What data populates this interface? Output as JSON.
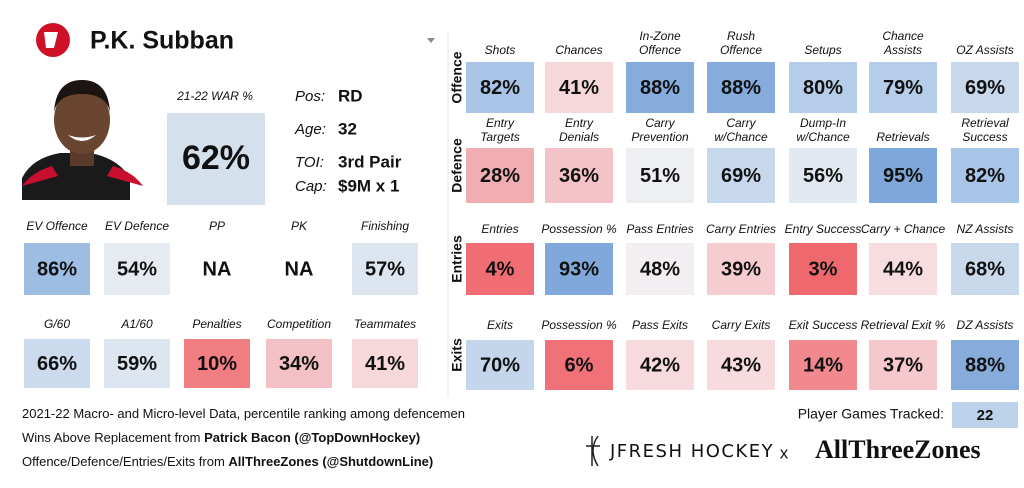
{
  "header": {
    "name": "P.K. Subban"
  },
  "war": {
    "label": "21-22 WAR %",
    "value": "62%",
    "color": "#d5e0ed"
  },
  "bio": [
    {
      "label": "Pos:",
      "value": "RD"
    },
    {
      "label": "Age:",
      "value": "32"
    },
    {
      "label": "TOI:",
      "value": "3rd Pair"
    },
    {
      "label": "Cap:",
      "value": "$9M x 1"
    }
  ],
  "left_rows": [
    [
      {
        "label": "EV Offence",
        "value": "86%",
        "color": "#9dbde3"
      },
      {
        "label": "EV Defence",
        "value": "54%",
        "color": "#e6ebf2"
      },
      {
        "label": "PP",
        "value": "NA"
      },
      {
        "label": "PK",
        "value": "NA"
      },
      {
        "label": "Finishing",
        "value": "57%",
        "color": "#dde5f0"
      }
    ],
    [
      {
        "label": "G/60",
        "value": "66%",
        "color": "#cbdaec"
      },
      {
        "label": "A1/60",
        "value": "59%",
        "color": "#dde5f0"
      },
      {
        "label": "Penalties",
        "value": "10%",
        "color": "#f07e83"
      },
      {
        "label": "Competition",
        "value": "34%",
        "color": "#f3c1c5"
      },
      {
        "label": "Teammates",
        "value": "41%",
        "color": "#f6d8db",
        "bold": false
      }
    ]
  ],
  "groups": [
    {
      "name": "Offence",
      "cells": [
        {
          "label": [
            "Shots"
          ],
          "value": "82%",
          "color": "#a8c4e6"
        },
        {
          "label": [
            "Chances"
          ],
          "value": "41%",
          "color": "#f6d8db"
        },
        {
          "label": [
            "In-Zone",
            "Offence"
          ],
          "value": "88%",
          "color": "#86acdc"
        },
        {
          "label": [
            "Rush",
            "Offence"
          ],
          "value": "88%",
          "color": "#86acdc"
        },
        {
          "label": [
            "Setups"
          ],
          "value": "80%",
          "color": "#b5cde9"
        },
        {
          "label": [
            "Chance",
            "Assists"
          ],
          "value": "79%",
          "color": "#b5cde9"
        },
        {
          "label": [
            "OZ Assists"
          ],
          "value": "69%",
          "color": "#c7d8ec"
        }
      ]
    },
    {
      "name": "Defence",
      "cells": [
        {
          "label": [
            "Entry",
            "Targets"
          ],
          "value": "28%",
          "color": "#f1aeb2"
        },
        {
          "label": [
            "Entry",
            "Denials"
          ],
          "value": "36%",
          "color": "#f3c3c7"
        },
        {
          "label": [
            "Carry",
            "Prevention"
          ],
          "value": "51%",
          "color": "#eeeff3"
        },
        {
          "label": [
            "Carry",
            "w/Chance"
          ],
          "value": "69%",
          "color": "#c7d8ec"
        },
        {
          "label": [
            "Dump-In",
            "w/Chance"
          ],
          "value": "56%",
          "color": "#e2e8f1"
        },
        {
          "label": [
            "Retrievals"
          ],
          "value": "95%",
          "color": "#7ea7da"
        },
        {
          "label": [
            "Retrieval",
            "Success"
          ],
          "value": "82%",
          "color": "#a8c4e6"
        }
      ]
    },
    {
      "name": "Entries",
      "cells": [
        {
          "label": [
            "Entries"
          ],
          "value": "4%",
          "color": "#f06d73"
        },
        {
          "label": [
            "Possession %"
          ],
          "value": "93%",
          "color": "#80a8da"
        },
        {
          "label": [
            "Pass Entries"
          ],
          "value": "48%",
          "color": "#f3eef1"
        },
        {
          "label": [
            "Carry Entries"
          ],
          "value": "39%",
          "color": "#f5cdd1"
        },
        {
          "label": [
            "Entry Success"
          ],
          "value": "3%",
          "color": "#ef686e"
        },
        {
          "label": [
            "Carry + Chance"
          ],
          "value": "44%",
          "color": "#f7dde0"
        },
        {
          "label": [
            "NZ Assists"
          ],
          "value": "68%",
          "color": "#c9d9ec"
        }
      ]
    },
    {
      "name": "Exits",
      "cells": [
        {
          "label": [
            "Exits"
          ],
          "value": "70%",
          "color": "#c4d6eb"
        },
        {
          "label": [
            "Possession %"
          ],
          "value": "6%",
          "color": "#f07278"
        },
        {
          "label": [
            "Pass Exits"
          ],
          "value": "42%",
          "color": "#f7dadd"
        },
        {
          "label": [
            "Carry Exits"
          ],
          "value": "43%",
          "color": "#f7dbde"
        },
        {
          "label": [
            "Exit Success"
          ],
          "value": "14%",
          "color": "#f2898e"
        },
        {
          "label": [
            "Retrieval Exit %"
          ],
          "value": "37%",
          "color": "#f4c8cc"
        },
        {
          "label": [
            "DZ Assists"
          ],
          "value": "88%",
          "color": "#86acdc"
        }
      ]
    }
  ],
  "notes": [
    [
      {
        "text": "2021-22 Macro- and Micro-level Data, percentile ranking among defencemen"
      }
    ],
    [
      {
        "text": "Wins Above Replacement from "
      },
      {
        "text": "Patrick Bacon (@TopDownHockey)",
        "bold": true
      }
    ],
    [
      {
        "text": "Offence/Defence/Entries/Exits from "
      },
      {
        "text": "AllThreeZones (@ShutdownLine)",
        "bold": true
      }
    ]
  ],
  "games": {
    "label": "Player Games Tracked:",
    "value": "22",
    "color": "#bcd1ea"
  },
  "brands": {
    "jfresh": "JFRESH HOCKEY",
    "x": "x",
    "atz": "AllThreeZones"
  }
}
